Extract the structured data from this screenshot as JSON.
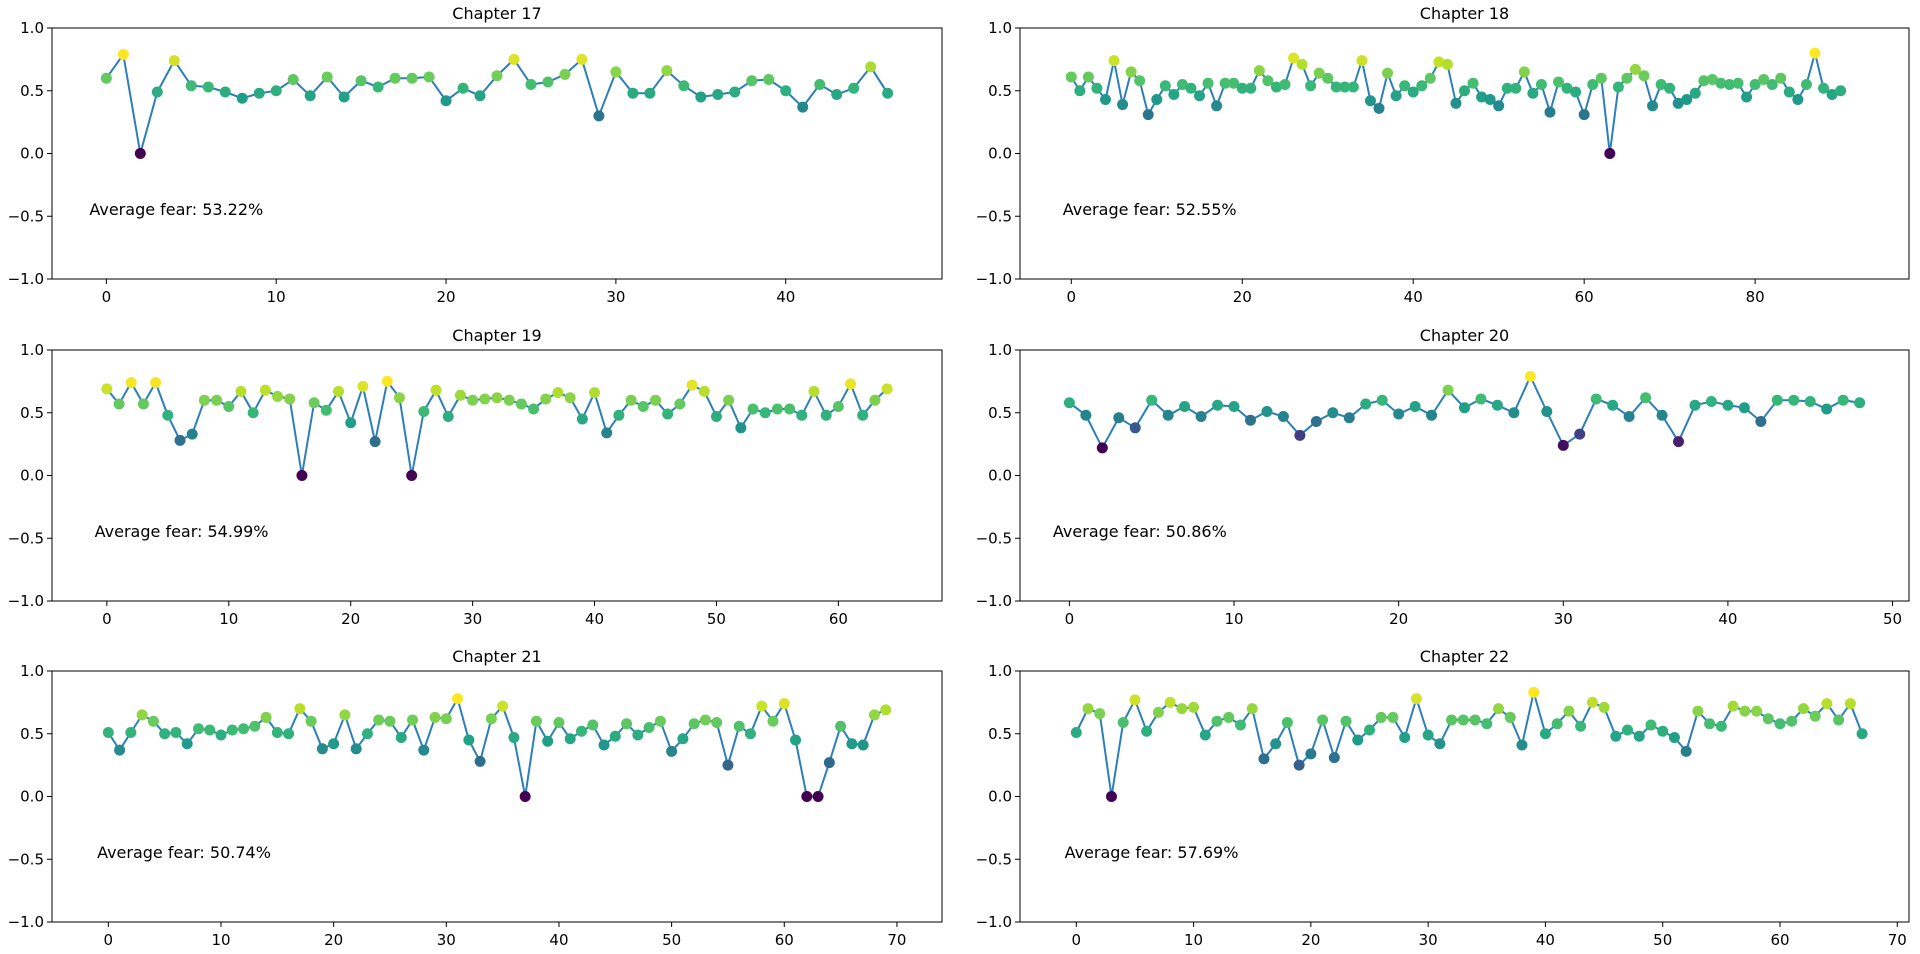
{
  "chart_data": [
    {
      "type": "scatter",
      "title": "Chapter 17",
      "annotation": "Average fear: 53.22%",
      "xlim": [
        -3.2,
        49.2
      ],
      "xticks": [
        0,
        10,
        20,
        30,
        40
      ],
      "ylim": [
        -1.0,
        1.0
      ],
      "yticks": [
        -1.0,
        -0.5,
        0.0,
        0.5,
        1.0
      ],
      "values": [
        0.6,
        0.79,
        0.0,
        0.49,
        0.74,
        0.54,
        0.53,
        0.49,
        0.44,
        0.48,
        0.5,
        0.59,
        0.46,
        0.61,
        0.45,
        0.58,
        0.53,
        0.6,
        0.6,
        0.61,
        0.42,
        0.52,
        0.46,
        0.62,
        0.75,
        0.55,
        0.57,
        0.63,
        0.75,
        0.3,
        0.65,
        0.48,
        0.48,
        0.66,
        0.54,
        0.45,
        0.47,
        0.49,
        0.58,
        0.59,
        0.5,
        0.37,
        0.55,
        0.47,
        0.52,
        0.69,
        0.48
      ]
    },
    {
      "type": "scatter",
      "title": "Chapter 18",
      "annotation": "Average fear: 52.55%",
      "xlim": [
        -6.0,
        98.0
      ],
      "xticks": [
        0,
        20,
        40,
        60,
        80
      ],
      "ylim": [
        -1.0,
        1.0
      ],
      "yticks": [
        -1.0,
        -0.5,
        0.0,
        0.5,
        1.0
      ],
      "values": [
        0.61,
        0.5,
        0.61,
        0.52,
        0.43,
        0.74,
        0.39,
        0.65,
        0.58,
        0.31,
        0.43,
        0.54,
        0.47,
        0.55,
        0.52,
        0.46,
        0.56,
        0.38,
        0.56,
        0.56,
        0.52,
        0.52,
        0.66,
        0.58,
        0.53,
        0.55,
        0.76,
        0.71,
        0.54,
        0.64,
        0.6,
        0.53,
        0.53,
        0.53,
        0.74,
        0.42,
        0.36,
        0.64,
        0.46,
        0.54,
        0.49,
        0.54,
        0.6,
        0.73,
        0.71,
        0.4,
        0.5,
        0.56,
        0.45,
        0.43,
        0.38,
        0.52,
        0.52,
        0.65,
        0.48,
        0.55,
        0.33,
        0.57,
        0.52,
        0.49,
        0.31,
        0.55,
        0.6,
        0.0,
        0.53,
        0.6,
        0.67,
        0.62,
        0.38,
        0.55,
        0.52,
        0.4,
        0.43,
        0.48,
        0.58,
        0.59,
        0.56,
        0.55,
        0.56,
        0.45,
        0.55,
        0.59,
        0.55,
        0.6,
        0.49,
        0.43,
        0.55,
        0.8,
        0.52,
        0.47,
        0.5
      ]
    },
    {
      "type": "scatter",
      "title": "Chapter 19",
      "annotation": "Average fear: 54.99%",
      "xlim": [
        -4.5,
        68.5
      ],
      "xticks": [
        0,
        10,
        20,
        30,
        40,
        50,
        60
      ],
      "ylim": [
        -1.0,
        1.0
      ],
      "yticks": [
        -1.0,
        -0.5,
        0.0,
        0.5,
        1.0
      ],
      "values": [
        0.69,
        0.57,
        0.74,
        0.57,
        0.74,
        0.48,
        0.28,
        0.33,
        0.6,
        0.6,
        0.55,
        0.67,
        0.5,
        0.68,
        0.63,
        0.61,
        0.0,
        0.58,
        0.52,
        0.67,
        0.42,
        0.71,
        0.27,
        0.75,
        0.62,
        0.0,
        0.51,
        0.68,
        0.47,
        0.64,
        0.6,
        0.61,
        0.62,
        0.6,
        0.57,
        0.53,
        0.61,
        0.66,
        0.62,
        0.45,
        0.66,
        0.34,
        0.48,
        0.6,
        0.55,
        0.6,
        0.49,
        0.57,
        0.72,
        0.67,
        0.47,
        0.6,
        0.38,
        0.53,
        0.5,
        0.53,
        0.53,
        0.48,
        0.67,
        0.48,
        0.55,
        0.73,
        0.48,
        0.6,
        0.69
      ]
    },
    {
      "type": "scatter",
      "title": "Chapter 20",
      "annotation": "Average fear: 50.86%",
      "xlim": [
        -3.0,
        51.0
      ],
      "xticks": [
        0,
        10,
        20,
        30,
        40,
        50
      ],
      "ylim": [
        -1.0,
        1.0
      ],
      "yticks": [
        -1.0,
        -0.5,
        0.0,
        0.5,
        1.0
      ],
      "values": [
        0.58,
        0.48,
        0.22,
        0.46,
        0.38,
        0.6,
        0.48,
        0.55,
        0.47,
        0.56,
        0.55,
        0.44,
        0.51,
        0.47,
        0.32,
        0.43,
        0.5,
        0.46,
        0.57,
        0.6,
        0.49,
        0.55,
        0.48,
        0.68,
        0.54,
        0.61,
        0.56,
        0.5,
        0.79,
        0.51,
        0.24,
        0.33,
        0.61,
        0.56,
        0.47,
        0.62,
        0.48,
        0.27,
        0.56,
        0.59,
        0.56,
        0.54,
        0.43,
        0.6,
        0.6,
        0.59,
        0.53,
        0.6,
        0.58
      ]
    },
    {
      "type": "scatter",
      "title": "Chapter 21",
      "annotation": "Average fear: 50.74%",
      "xlim": [
        -5.0,
        74.0
      ],
      "xticks": [
        0,
        10,
        20,
        30,
        40,
        50,
        60,
        70
      ],
      "ylim": [
        -1.0,
        1.0
      ],
      "yticks": [
        -1.0,
        -0.5,
        0.0,
        0.5,
        1.0
      ],
      "values": [
        0.51,
        0.37,
        0.51,
        0.65,
        0.6,
        0.5,
        0.51,
        0.42,
        0.54,
        0.53,
        0.49,
        0.53,
        0.54,
        0.56,
        0.63,
        0.51,
        0.5,
        0.7,
        0.6,
        0.38,
        0.42,
        0.65,
        0.38,
        0.5,
        0.61,
        0.6,
        0.47,
        0.61,
        0.37,
        0.63,
        0.62,
        0.78,
        0.45,
        0.28,
        0.62,
        0.72,
        0.47,
        0.0,
        0.6,
        0.44,
        0.59,
        0.46,
        0.52,
        0.57,
        0.41,
        0.48,
        0.58,
        0.49,
        0.55,
        0.6,
        0.36,
        0.46,
        0.58,
        0.61,
        0.59,
        0.25,
        0.56,
        0.5,
        0.72,
        0.6,
        0.74,
        0.45,
        0.0,
        0.0,
        0.27,
        0.56,
        0.42,
        0.41,
        0.65,
        0.69
      ]
    },
    {
      "type": "scatter",
      "title": "Chapter 22",
      "annotation": "Average fear: 57.69%",
      "xlim": [
        -4.8,
        71.0
      ],
      "xticks": [
        0,
        10,
        20,
        30,
        40,
        50,
        60,
        70
      ],
      "ylim": [
        -1.0,
        1.0
      ],
      "yticks": [
        -1.0,
        -0.5,
        0.0,
        0.5,
        1.0
      ],
      "values": [
        0.51,
        0.7,
        0.66,
        0.0,
        0.59,
        0.77,
        0.52,
        0.67,
        0.75,
        0.7,
        0.71,
        0.49,
        0.6,
        0.63,
        0.57,
        0.7,
        0.3,
        0.42,
        0.59,
        0.25,
        0.34,
        0.61,
        0.31,
        0.6,
        0.45,
        0.53,
        0.63,
        0.63,
        0.47,
        0.78,
        0.49,
        0.42,
        0.61,
        0.61,
        0.61,
        0.58,
        0.7,
        0.63,
        0.41,
        0.83,
        0.5,
        0.58,
        0.68,
        0.56,
        0.75,
        0.71,
        0.48,
        0.53,
        0.48,
        0.57,
        0.52,
        0.47,
        0.36,
        0.68,
        0.58,
        0.56,
        0.72,
        0.68,
        0.68,
        0.62,
        0.58,
        0.6,
        0.7,
        0.64,
        0.74,
        0.61,
        0.74,
        0.5
      ]
    }
  ]
}
